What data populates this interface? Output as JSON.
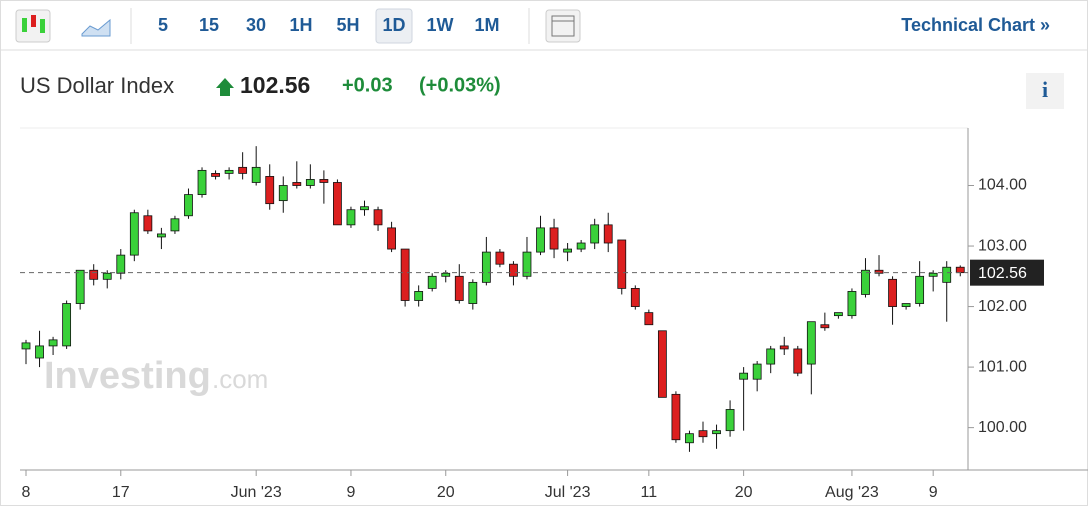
{
  "toolbar": {
    "intervals": [
      "5",
      "15",
      "30",
      "1H",
      "5H",
      "1D",
      "1W",
      "1M"
    ],
    "active": "1D",
    "link": "Technical Chart »"
  },
  "header": {
    "title": "US Dollar Index",
    "change": "+0.03",
    "change_pct": "(+0.03%)",
    "info": "i"
  },
  "watermark": {
    "brand": "Investing",
    "suffix": ".com"
  },
  "chart_data": {
    "type": "candlestick",
    "up_color": "#3ad13a",
    "down_color": "#dc1f1f",
    "last_price": 102.56,
    "categories": [
      "8",
      null,
      null,
      null,
      null,
      null,
      null,
      "17",
      null,
      null,
      null,
      null,
      null,
      null,
      null,
      null,
      null,
      "Jun '23",
      null,
      null,
      null,
      null,
      null,
      null,
      "9",
      null,
      null,
      null,
      null,
      null,
      null,
      "20",
      null,
      null,
      null,
      null,
      null,
      null,
      null,
      null,
      "Jul '23",
      null,
      null,
      null,
      null,
      null,
      "11",
      null,
      null,
      null,
      null,
      null,
      null,
      "20",
      null,
      null,
      null,
      null,
      null,
      null,
      null,
      "Aug '23",
      null,
      null,
      null,
      null,
      null,
      "9",
      null,
      null
    ],
    "open": [
      101.3,
      101.15,
      101.35,
      101.35,
      102.05,
      102.6,
      102.45,
      102.55,
      102.85,
      103.5,
      103.15,
      103.25,
      103.5,
      103.85,
      104.2,
      104.2,
      104.3,
      104.05,
      104.15,
      103.75,
      104.05,
      104.0,
      104.1,
      104.05,
      103.35,
      103.6,
      103.6,
      103.3,
      102.95,
      102.1,
      102.3,
      102.5,
      102.5,
      102.05,
      102.4,
      102.9,
      102.7,
      102.5,
      102.9,
      103.3,
      102.9,
      102.95,
      103.05,
      103.35,
      103.1,
      102.3,
      101.9,
      101.6,
      100.55,
      99.75,
      99.95,
      99.9,
      99.95,
      100.8,
      100.8,
      101.05,
      101.35,
      101.3,
      101.05,
      101.7,
      101.85,
      101.85,
      102.2,
      102.6,
      102.45,
      102.0,
      102.05,
      102.5,
      102.4,
      102.65
    ],
    "high": [
      101.45,
      101.6,
      101.5,
      102.1,
      102.6,
      102.7,
      102.6,
      102.95,
      103.6,
      103.6,
      103.3,
      103.5,
      103.95,
      104.3,
      104.25,
      104.3,
      104.55,
      104.65,
      104.35,
      104.15,
      104.4,
      104.35,
      104.25,
      104.1,
      103.65,
      103.75,
      103.65,
      103.4,
      102.95,
      102.35,
      102.55,
      102.6,
      102.7,
      102.45,
      103.15,
      102.95,
      102.75,
      103.15,
      103.5,
      103.45,
      103.05,
      103.1,
      103.45,
      103.55,
      103.1,
      102.35,
      101.95,
      101.6,
      100.6,
      99.95,
      100.1,
      100.05,
      100.45,
      101.0,
      101.1,
      101.35,
      101.5,
      101.35,
      101.75,
      101.9,
      101.9,
      102.3,
      102.8,
      102.85,
      102.5,
      102.05,
      102.75,
      102.6,
      102.75,
      102.68
    ],
    "low": [
      101.05,
      101.0,
      101.2,
      101.3,
      101.95,
      102.35,
      102.3,
      102.45,
      102.75,
      103.2,
      102.95,
      103.2,
      103.45,
      103.8,
      104.1,
      104.1,
      104.1,
      104.0,
      103.6,
      103.55,
      103.95,
      103.95,
      103.7,
      103.35,
      103.3,
      103.5,
      103.25,
      102.9,
      102.0,
      102.0,
      102.25,
      102.4,
      102.05,
      101.95,
      102.35,
      102.65,
      102.35,
      102.45,
      102.85,
      102.8,
      102.75,
      102.9,
      102.95,
      102.9,
      102.2,
      101.95,
      101.7,
      100.5,
      99.75,
      99.6,
      99.75,
      99.65,
      99.85,
      99.95,
      100.6,
      100.9,
      101.2,
      100.85,
      100.55,
      101.6,
      101.8,
      101.8,
      102.15,
      102.5,
      101.7,
      101.95,
      102.0,
      102.25,
      101.75,
      102.5
    ],
    "close": [
      101.4,
      101.35,
      101.45,
      102.05,
      102.6,
      102.45,
      102.55,
      102.85,
      103.55,
      103.25,
      103.2,
      103.45,
      103.85,
      104.25,
      104.15,
      104.25,
      104.2,
      104.3,
      103.7,
      104.0,
      104.0,
      104.1,
      104.05,
      103.35,
      103.6,
      103.65,
      103.35,
      102.95,
      102.1,
      102.25,
      102.5,
      102.55,
      102.1,
      102.4,
      102.9,
      102.7,
      102.5,
      102.9,
      103.3,
      102.95,
      102.95,
      103.05,
      103.35,
      103.05,
      102.3,
      102.0,
      101.7,
      100.5,
      99.8,
      99.9,
      99.85,
      99.95,
      100.3,
      100.9,
      101.05,
      101.3,
      101.3,
      100.9,
      101.75,
      101.65,
      101.9,
      102.25,
      102.6,
      102.55,
      102.0,
      102.05,
      102.5,
      102.55,
      102.65,
      102.56
    ],
    "ylim": [
      99.3,
      104.95
    ],
    "yticks": [
      {
        "value": 100,
        "label": "100.00"
      },
      {
        "value": 101,
        "label": "101.00"
      },
      {
        "value": 102,
        "label": "102.00"
      },
      {
        "value": 103,
        "label": "103.00"
      },
      {
        "value": 104,
        "label": "104.00"
      }
    ]
  }
}
